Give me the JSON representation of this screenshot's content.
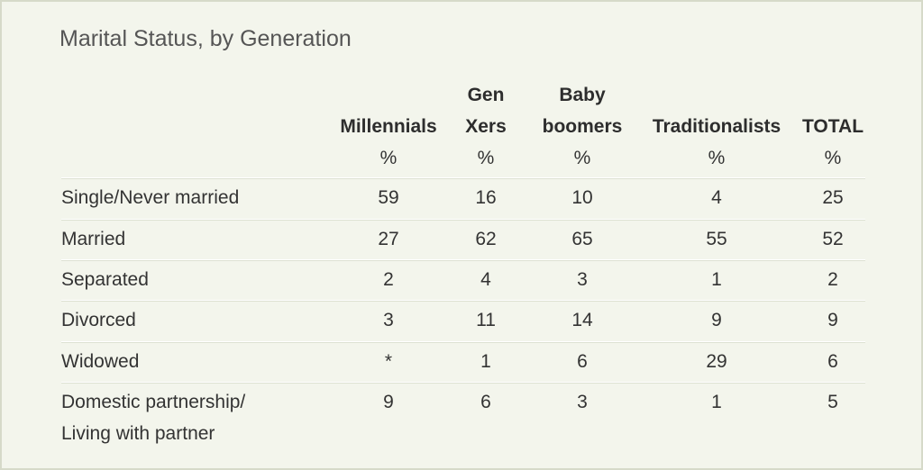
{
  "chart_data": {
    "type": "table",
    "title": "Marital Status, by Generation",
    "columns": [
      {
        "label_line1": "",
        "label_line2": "Millennials",
        "unit": "%"
      },
      {
        "label_line1": "Gen",
        "label_line2": "Xers",
        "unit": "%"
      },
      {
        "label_line1": "Baby",
        "label_line2": "boomers",
        "unit": "%"
      },
      {
        "label_line1": "",
        "label_line2": "Traditionalists",
        "unit": "%"
      },
      {
        "label_line1": "",
        "label_line2": "TOTAL",
        "unit": "%"
      }
    ],
    "rows": [
      {
        "label_line1": "Single/Never married",
        "label_line2": "",
        "values": [
          "59",
          "16",
          "10",
          "4",
          "25"
        ]
      },
      {
        "label_line1": "Married",
        "label_line2": "",
        "values": [
          "27",
          "62",
          "65",
          "55",
          "52"
        ]
      },
      {
        "label_line1": "Separated",
        "label_line2": "",
        "values": [
          "2",
          "4",
          "3",
          "1",
          "2"
        ]
      },
      {
        "label_line1": "Divorced",
        "label_line2": "",
        "values": [
          "3",
          "11",
          "14",
          "9",
          "9"
        ]
      },
      {
        "label_line1": "Widowed",
        "label_line2": "",
        "values": [
          "*",
          "1",
          "6",
          "29",
          "6"
        ]
      },
      {
        "label_line1": "Domestic partnership/",
        "label_line2": "Living with partner",
        "values": [
          "9",
          "6",
          "3",
          "1",
          "5"
        ]
      }
    ]
  }
}
